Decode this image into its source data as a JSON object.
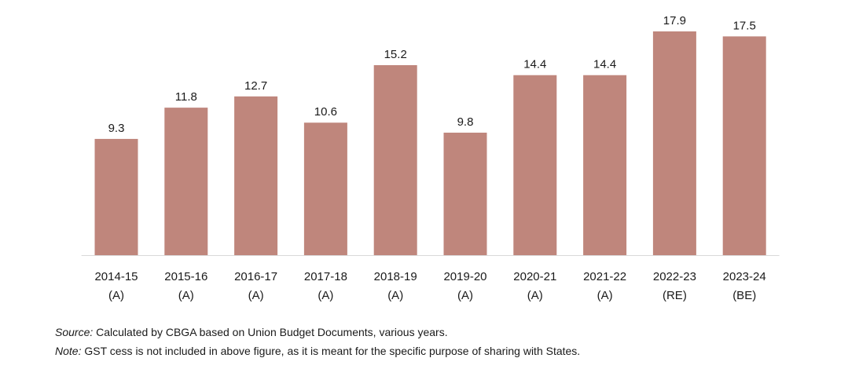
{
  "chart_data": {
    "type": "bar",
    "categories": [
      [
        "2014-15",
        "(A)"
      ],
      [
        "2015-16",
        "(A)"
      ],
      [
        "2016-17",
        "(A)"
      ],
      [
        "2017-18",
        "(A)"
      ],
      [
        "2018-19",
        "(A)"
      ],
      [
        "2019-20",
        "(A)"
      ],
      [
        "2020-21",
        "(A)"
      ],
      [
        "2021-22",
        "(A)"
      ],
      [
        "2022-23",
        "(RE)"
      ],
      [
        "2023-24",
        "(BE)"
      ]
    ],
    "values": [
      9.3,
      11.8,
      12.7,
      10.6,
      15.2,
      9.8,
      14.4,
      14.4,
      17.9,
      17.5
    ],
    "value_labels": [
      "9.3",
      "11.8",
      "12.7",
      "10.6",
      "15.2",
      "9.8",
      "14.4",
      "14.4",
      "17.9",
      "17.5"
    ],
    "bar_color": "#BF867C",
    "axis_line_color": "#d9d9d9",
    "ylim": [
      0,
      17.9
    ],
    "grid": false,
    "legend": "none"
  },
  "notes": {
    "source_lead": "Source:",
    "source_text": "Calculated by CBGA based on Union Budget Documents, various years.",
    "note_lead": "Note:",
    "note_text": "GST cess is not included in above figure, as it is meant for the specific purpose of sharing with States."
  }
}
